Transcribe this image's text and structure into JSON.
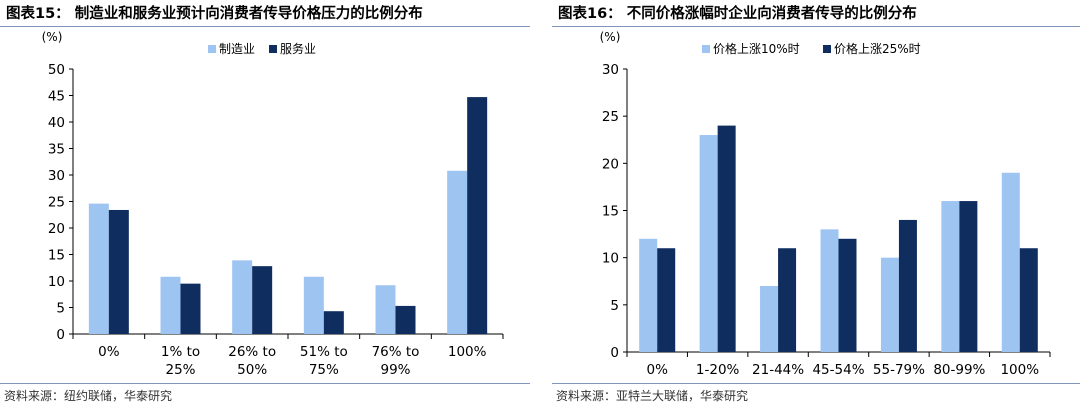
{
  "charts": [
    {
      "title": "图表15：   制造业和服务业预计向消费者传导价格压力的比例分布",
      "source": "资料来源：纽约联储，华泰研究"
    },
    {
      "title": "图表16：   不同价格涨幅时企业向消费者传导的比例分布",
      "source": "资料来源：亚特兰大联储，华泰研究"
    }
  ],
  "colors": {
    "light": "#9ec4f2",
    "dark": "#0f2d5e",
    "rule": "#7f96b8"
  },
  "chart_data": [
    {
      "type": "bar",
      "title": "图表15：   制造业和服务业预计向消费者传导价格压力的比例分布",
      "unit_label": "(%)",
      "categories": [
        "0%",
        "1% to\n25%",
        "26% to\n50%",
        "51% to\n75%",
        "76% to\n99%",
        "100%"
      ],
      "series": [
        {
          "name": "制造业",
          "values": [
            24.6,
            10.8,
            13.9,
            10.8,
            9.2,
            30.8
          ]
        },
        {
          "name": "服务业",
          "values": [
            23.4,
            9.5,
            12.8,
            4.3,
            5.3,
            44.7
          ]
        }
      ],
      "ylim": [
        0,
        50
      ],
      "yticks": [
        0,
        5,
        10,
        15,
        20,
        25,
        30,
        35,
        40,
        45,
        50
      ],
      "legend": "top-center",
      "grid": false
    },
    {
      "type": "bar",
      "title": "图表16：   不同价格涨幅时企业向消费者传导的比例分布",
      "unit_label": "(%)",
      "categories": [
        "0%",
        "1-20%",
        "21-44%",
        "45-54%",
        "55-79%",
        "80-99%",
        "100%"
      ],
      "series": [
        {
          "name": "价格上涨10%时",
          "values": [
            12,
            23,
            7,
            13,
            10,
            16,
            19
          ]
        },
        {
          "name": "价格上涨25%时",
          "values": [
            11,
            24,
            11,
            12,
            14,
            16,
            11
          ]
        }
      ],
      "ylim": [
        0,
        30
      ],
      "yticks": [
        0,
        5,
        10,
        15,
        20,
        25,
        30
      ],
      "legend": "top-center",
      "grid": false
    }
  ]
}
